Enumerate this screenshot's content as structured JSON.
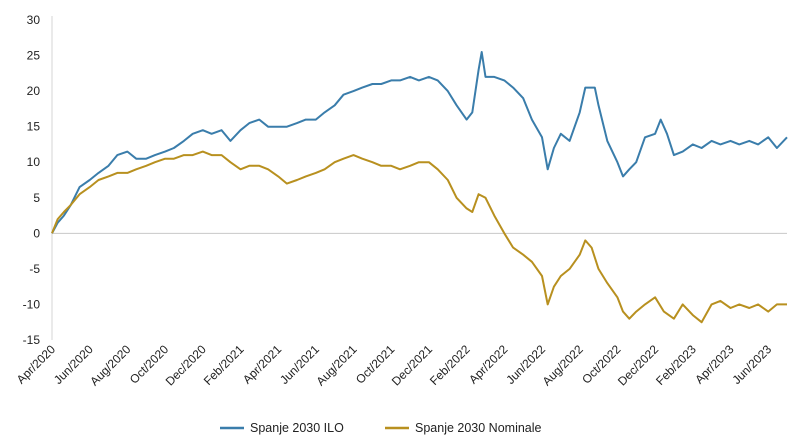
{
  "chart_data": {
    "type": "line",
    "title": "",
    "xlabel": "",
    "ylabel": "",
    "ylim": [
      -15,
      30
    ],
    "y_ticks": [
      -15,
      -10,
      -5,
      0,
      5,
      10,
      15,
      20,
      25,
      30
    ],
    "x_range": [
      "2020-04",
      "2023-07"
    ],
    "x_ticks": [
      "Apr/2020",
      "Jun/2020",
      "Aug/2020",
      "Oct/2020",
      "Dec/2020",
      "Feb/2021",
      "Apr/2021",
      "Jun/2021",
      "Aug/2021",
      "Oct/2021",
      "Dec/2021",
      "Feb/2022",
      "Apr/2022",
      "Jun/2022",
      "Aug/2022",
      "Oct/2022",
      "Dec/2022",
      "Feb/2023",
      "Apr/2023",
      "Jun/2023"
    ],
    "grid": false,
    "legend_position": "bottom",
    "series": [
      {
        "name": "Spanje 2030 ILO",
        "color": "#3a7dab",
        "points": [
          [
            "2020-04",
            0
          ],
          [
            "2020-04-10",
            1.5
          ],
          [
            "2020-04-20",
            2.5
          ],
          [
            "2020-05",
            4
          ],
          [
            "2020-05-15",
            6.5
          ],
          [
            "2020-06",
            7.5
          ],
          [
            "2020-06-15",
            8.5
          ],
          [
            "2020-07",
            9.5
          ],
          [
            "2020-07-15",
            11
          ],
          [
            "2020-08",
            11.5
          ],
          [
            "2020-08-15",
            10.5
          ],
          [
            "2020-09",
            10.5
          ],
          [
            "2020-09-15",
            11
          ],
          [
            "2020-10",
            11.5
          ],
          [
            "2020-10-15",
            12
          ],
          [
            "2020-11",
            13
          ],
          [
            "2020-11-15",
            14
          ],
          [
            "2020-12",
            14.5
          ],
          [
            "2020-12-15",
            14
          ],
          [
            "2021-01",
            14.5
          ],
          [
            "2021-01-15",
            13
          ],
          [
            "2021-02",
            14.5
          ],
          [
            "2021-02-15",
            15.5
          ],
          [
            "2021-03",
            16
          ],
          [
            "2021-03-15",
            15
          ],
          [
            "2021-04",
            15
          ],
          [
            "2021-04-15",
            15
          ],
          [
            "2021-05",
            15.5
          ],
          [
            "2021-05-15",
            16
          ],
          [
            "2021-06",
            16
          ],
          [
            "2021-06-15",
            17
          ],
          [
            "2021-07",
            18
          ],
          [
            "2021-07-15",
            19.5
          ],
          [
            "2021-08",
            20
          ],
          [
            "2021-08-15",
            20.5
          ],
          [
            "2021-09",
            21
          ],
          [
            "2021-09-15",
            21
          ],
          [
            "2021-10",
            21.5
          ],
          [
            "2021-10-15",
            21.5
          ],
          [
            "2021-11",
            22
          ],
          [
            "2021-11-15",
            21.5
          ],
          [
            "2021-12",
            22
          ],
          [
            "2021-12-15",
            21.5
          ],
          [
            "2022-01",
            20
          ],
          [
            "2022-01-15",
            18
          ],
          [
            "2022-02",
            16
          ],
          [
            "2022-02-10",
            17
          ],
          [
            "2022-02-20",
            23
          ],
          [
            "2022-02-25",
            25.5
          ],
          [
            "2022-03",
            22
          ],
          [
            "2022-03-15",
            22
          ],
          [
            "2022-04",
            21.5
          ],
          [
            "2022-04-15",
            20.5
          ],
          [
            "2022-05",
            19
          ],
          [
            "2022-05-15",
            16
          ],
          [
            "2022-06",
            13.5
          ],
          [
            "2022-06-10",
            9
          ],
          [
            "2022-06-20",
            12
          ],
          [
            "2022-07",
            14
          ],
          [
            "2022-07-15",
            13
          ],
          [
            "2022-08",
            17
          ],
          [
            "2022-08-10",
            20.5
          ],
          [
            "2022-08-25",
            20.5
          ],
          [
            "2022-09",
            18
          ],
          [
            "2022-09-15",
            13
          ],
          [
            "2022-10",
            10
          ],
          [
            "2022-10-10",
            8
          ],
          [
            "2022-10-20",
            9
          ],
          [
            "2022-11",
            10
          ],
          [
            "2022-11-15",
            13.5
          ],
          [
            "2022-12",
            14
          ],
          [
            "2022-12-10",
            16
          ],
          [
            "2022-12-20",
            14
          ],
          [
            "2023-01",
            11
          ],
          [
            "2023-01-15",
            11.5
          ],
          [
            "2023-02",
            12.5
          ],
          [
            "2023-02-15",
            12
          ],
          [
            "2023-03",
            13
          ],
          [
            "2023-03-15",
            12.5
          ],
          [
            "2023-04",
            13
          ],
          [
            "2023-04-15",
            12.5
          ],
          [
            "2023-05",
            13
          ],
          [
            "2023-05-15",
            12.5
          ],
          [
            "2023-06",
            13.5
          ],
          [
            "2023-06-15",
            12
          ],
          [
            "2023-07",
            13.5
          ]
        ]
      },
      {
        "name": "Spanje 2030 Nominale",
        "color": "#b8901f",
        "points": [
          [
            "2020-04",
            0
          ],
          [
            "2020-04-10",
            2
          ],
          [
            "2020-04-20",
            3
          ],
          [
            "2020-05",
            4
          ],
          [
            "2020-05-15",
            5.5
          ],
          [
            "2020-06",
            6.5
          ],
          [
            "2020-06-15",
            7.5
          ],
          [
            "2020-07",
            8
          ],
          [
            "2020-07-15",
            8.5
          ],
          [
            "2020-08",
            8.5
          ],
          [
            "2020-08-15",
            9
          ],
          [
            "2020-09",
            9.5
          ],
          [
            "2020-09-15",
            10
          ],
          [
            "2020-10",
            10.5
          ],
          [
            "2020-10-15",
            10.5
          ],
          [
            "2020-11",
            11
          ],
          [
            "2020-11-15",
            11
          ],
          [
            "2020-12",
            11.5
          ],
          [
            "2020-12-15",
            11
          ],
          [
            "2021-01",
            11
          ],
          [
            "2021-01-15",
            10
          ],
          [
            "2021-02",
            9
          ],
          [
            "2021-02-15",
            9.5
          ],
          [
            "2021-03",
            9.5
          ],
          [
            "2021-03-15",
            9
          ],
          [
            "2021-04",
            8
          ],
          [
            "2021-04-15",
            7
          ],
          [
            "2021-05",
            7.5
          ],
          [
            "2021-05-15",
            8
          ],
          [
            "2021-06",
            8.5
          ],
          [
            "2021-06-15",
            9
          ],
          [
            "2021-07",
            10
          ],
          [
            "2021-07-15",
            10.5
          ],
          [
            "2021-08",
            11
          ],
          [
            "2021-08-15",
            10.5
          ],
          [
            "2021-09",
            10
          ],
          [
            "2021-09-15",
            9.5
          ],
          [
            "2021-10",
            9.5
          ],
          [
            "2021-10-15",
            9
          ],
          [
            "2021-11",
            9.5
          ],
          [
            "2021-11-15",
            10
          ],
          [
            "2021-12",
            10
          ],
          [
            "2021-12-15",
            9
          ],
          [
            "2022-01",
            7.5
          ],
          [
            "2022-01-15",
            5
          ],
          [
            "2022-02",
            3.5
          ],
          [
            "2022-02-10",
            3
          ],
          [
            "2022-02-20",
            5.5
          ],
          [
            "2022-03",
            5
          ],
          [
            "2022-03-15",
            2.5
          ],
          [
            "2022-04",
            0
          ],
          [
            "2022-04-15",
            -2
          ],
          [
            "2022-05",
            -3
          ],
          [
            "2022-05-15",
            -4
          ],
          [
            "2022-06",
            -6
          ],
          [
            "2022-06-10",
            -10
          ],
          [
            "2022-06-20",
            -7.5
          ],
          [
            "2022-07",
            -6
          ],
          [
            "2022-07-15",
            -5
          ],
          [
            "2022-08",
            -3
          ],
          [
            "2022-08-10",
            -1
          ],
          [
            "2022-08-20",
            -2
          ],
          [
            "2022-09",
            -5
          ],
          [
            "2022-09-15",
            -7
          ],
          [
            "2022-10",
            -9
          ],
          [
            "2022-10-10",
            -11
          ],
          [
            "2022-10-20",
            -12
          ],
          [
            "2022-11",
            -11
          ],
          [
            "2022-11-15",
            -10
          ],
          [
            "2022-12",
            -9
          ],
          [
            "2022-12-15",
            -11
          ],
          [
            "2023-01",
            -12
          ],
          [
            "2023-01-15",
            -10
          ],
          [
            "2023-02",
            -11.5
          ],
          [
            "2023-02-15",
            -12.5
          ],
          [
            "2023-03",
            -10
          ],
          [
            "2023-03-15",
            -9.5
          ],
          [
            "2023-04",
            -10.5
          ],
          [
            "2023-04-15",
            -10
          ],
          [
            "2023-05",
            -10.5
          ],
          [
            "2023-05-15",
            -10
          ],
          [
            "2023-06",
            -11
          ],
          [
            "2023-06-15",
            -10
          ],
          [
            "2023-07",
            -10
          ]
        ]
      }
    ]
  }
}
